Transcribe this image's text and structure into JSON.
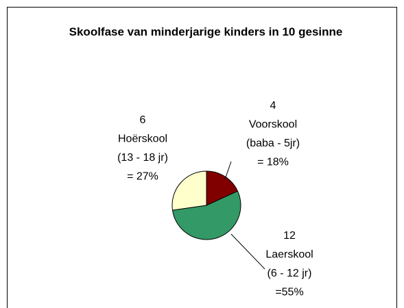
{
  "chart_data": {
    "type": "pie",
    "title": "Skoolfase van minderjarige kinders in 10 gesinne",
    "categories": [
      "Voorskool",
      "Laerskool",
      "Hoërskool"
    ],
    "ranges": [
      "(baba - 5jr)",
      "(6 - 12 jr)",
      "(13 - 18 jr)"
    ],
    "values": [
      4,
      12,
      6
    ],
    "percent_labels": [
      "= 18%",
      "=55%",
      "= 27%"
    ],
    "colors": [
      "#800000",
      "#339966",
      "#ffffcc"
    ]
  }
}
